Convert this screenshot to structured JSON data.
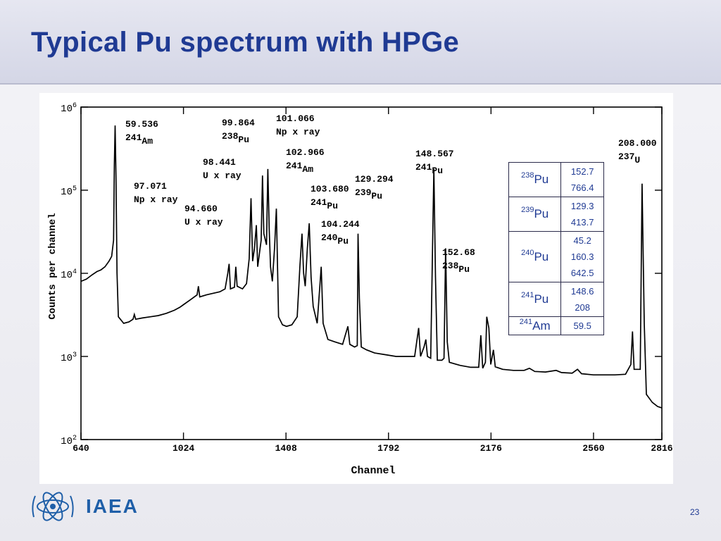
{
  "slide": {
    "title": "Typical Pu spectrum with HPGe",
    "page_number": "23",
    "org": "IAEA",
    "accent_color": "#1f3a93"
  },
  "chart_data": {
    "type": "line",
    "title": "",
    "xlabel": "Channel",
    "ylabel": "Counts per channel",
    "x_scale": "linear",
    "y_scale": "log",
    "xlim": [
      640,
      2816
    ],
    "ylim": [
      100,
      1000000
    ],
    "x_ticks": [
      {
        "value": 640,
        "label": "640"
      },
      {
        "value": 1024,
        "label": "1024"
      },
      {
        "value": 1408,
        "label": "1408"
      },
      {
        "value": 1792,
        "label": "1792"
      },
      {
        "value": 2176,
        "label": "2176"
      },
      {
        "value": 2560,
        "label": "2560"
      },
      {
        "value": 2816,
        "label": "2816"
      }
    ],
    "y_ticks": [
      {
        "value": 100,
        "base": "10",
        "exp": "2"
      },
      {
        "value": 1000,
        "base": "10",
        "exp": "3"
      },
      {
        "value": 10000,
        "base": "10",
        "exp": "4"
      },
      {
        "value": 100000,
        "base": "10",
        "exp": "5"
      },
      {
        "value": 1000000,
        "base": "10",
        "exp": "6"
      }
    ],
    "grid": false,
    "line_color": "#000000",
    "series": [
      {
        "points": [
          [
            640,
            8000
          ],
          [
            660,
            8500
          ],
          [
            680,
            9500
          ],
          [
            700,
            10500
          ],
          [
            715,
            11000
          ],
          [
            730,
            12000
          ],
          [
            745,
            14000
          ],
          [
            755,
            16000
          ],
          [
            762,
            25000
          ],
          [
            765,
            200000
          ],
          [
            768,
            600000
          ],
          [
            771,
            150000
          ],
          [
            775,
            10000
          ],
          [
            780,
            3000
          ],
          [
            800,
            2500
          ],
          [
            820,
            2600
          ],
          [
            835,
            2800
          ],
          [
            840,
            3200
          ],
          [
            845,
            2800
          ],
          [
            870,
            2900
          ],
          [
            900,
            3000
          ],
          [
            930,
            3100
          ],
          [
            960,
            3300
          ],
          [
            990,
            3600
          ],
          [
            1010,
            3900
          ],
          [
            1024,
            4200
          ],
          [
            1050,
            4800
          ],
          [
            1075,
            5500
          ],
          [
            1080,
            7000
          ],
          [
            1085,
            5200
          ],
          [
            1110,
            5500
          ],
          [
            1140,
            5800
          ],
          [
            1160,
            6000
          ],
          [
            1180,
            6500
          ],
          [
            1190,
            10000
          ],
          [
            1195,
            13000
          ],
          [
            1200,
            6500
          ],
          [
            1215,
            6800
          ],
          [
            1220,
            12000
          ],
          [
            1225,
            7000
          ],
          [
            1245,
            6500
          ],
          [
            1260,
            7500
          ],
          [
            1270,
            15000
          ],
          [
            1277,
            80000
          ],
          [
            1283,
            14000
          ],
          [
            1290,
            20000
          ],
          [
            1297,
            38000
          ],
          [
            1302,
            12000
          ],
          [
            1315,
            25000
          ],
          [
            1320,
            150000
          ],
          [
            1325,
            30000
          ],
          [
            1335,
            22000
          ],
          [
            1340,
            180000
          ],
          [
            1345,
            35000
          ],
          [
            1350,
            12000
          ],
          [
            1357,
            8000
          ],
          [
            1365,
            20000
          ],
          [
            1372,
            60000
          ],
          [
            1380,
            3000
          ],
          [
            1395,
            2400
          ],
          [
            1410,
            2300
          ],
          [
            1430,
            2400
          ],
          [
            1450,
            3000
          ],
          [
            1460,
            12000
          ],
          [
            1468,
            30000
          ],
          [
            1474,
            10000
          ],
          [
            1480,
            7000
          ],
          [
            1488,
            20000
          ],
          [
            1495,
            40000
          ],
          [
            1502,
            9000
          ],
          [
            1510,
            4000
          ],
          [
            1525,
            2500
          ],
          [
            1540,
            12000
          ],
          [
            1547,
            2500
          ],
          [
            1565,
            1600
          ],
          [
            1590,
            1500
          ],
          [
            1620,
            1400
          ],
          [
            1640,
            2300
          ],
          [
            1647,
            1400
          ],
          [
            1665,
            1300
          ],
          [
            1675,
            1350
          ],
          [
            1678,
            30000
          ],
          [
            1683,
            5000
          ],
          [
            1690,
            1300
          ],
          [
            1710,
            1200
          ],
          [
            1740,
            1100
          ],
          [
            1780,
            1050
          ],
          [
            1820,
            1000
          ],
          [
            1860,
            1000
          ],
          [
            1890,
            1000
          ],
          [
            1905,
            2200
          ],
          [
            1912,
            1000
          ],
          [
            1925,
            1300
          ],
          [
            1932,
            1600
          ],
          [
            1938,
            1000
          ],
          [
            1950,
            950
          ],
          [
            1962,
            180000
          ],
          [
            1968,
            9000
          ],
          [
            1975,
            900
          ],
          [
            1992,
            900
          ],
          [
            2000,
            950
          ],
          [
            2006,
            20000
          ],
          [
            2012,
            1500
          ],
          [
            2020,
            850
          ],
          [
            2060,
            780
          ],
          [
            2100,
            740
          ],
          [
            2130,
            740
          ],
          [
            2138,
            1800
          ],
          [
            2145,
            720
          ],
          [
            2155,
            850
          ],
          [
            2160,
            3000
          ],
          [
            2168,
            2200
          ],
          [
            2175,
            800
          ],
          [
            2185,
            1200
          ],
          [
            2192,
            750
          ],
          [
            2220,
            700
          ],
          [
            2260,
            680
          ],
          [
            2300,
            680
          ],
          [
            2320,
            720
          ],
          [
            2340,
            660
          ],
          [
            2380,
            650
          ],
          [
            2420,
            680
          ],
          [
            2440,
            640
          ],
          [
            2480,
            630
          ],
          [
            2500,
            700
          ],
          [
            2515,
            620
          ],
          [
            2560,
            600
          ],
          [
            2600,
            600
          ],
          [
            2640,
            600
          ],
          [
            2680,
            610
          ],
          [
            2700,
            800
          ],
          [
            2706,
            2000
          ],
          [
            2712,
            700
          ],
          [
            2735,
            700
          ],
          [
            2742,
            120000
          ],
          [
            2750,
            2500
          ],
          [
            2758,
            350
          ],
          [
            2780,
            280
          ],
          [
            2800,
            250
          ],
          [
            2816,
            240
          ]
        ]
      }
    ],
    "annotations": [
      {
        "energy": "59.536",
        "isotope": "Am",
        "mass": "241",
        "peak_x": 768,
        "peak_y": 600000
      },
      {
        "energy": "94.660",
        "note": "U x ray",
        "peak_x": 1277,
        "peak_y": 80000
      },
      {
        "energy": "97.071",
        "note": "Np x ray",
        "peak_x": 1290,
        "peak_y": 100000
      },
      {
        "energy": "98.441",
        "note": "U x ray",
        "peak_x": 1303,
        "peak_y": 130000
      },
      {
        "energy": "99.864",
        "isotope": "Pu",
        "mass": "238",
        "peak_x": 1320,
        "peak_y": 500000
      },
      {
        "energy": "101.066",
        "note": "Np x ray",
        "peak_x": 1336,
        "peak_y": 550000
      },
      {
        "energy": "102.966",
        "isotope": "Am",
        "mass": "241",
        "peak_x": 1340,
        "peak_y": 200000
      },
      {
        "energy": "103.680",
        "isotope": "Pu",
        "mass": "241",
        "peak_x": 1358,
        "peak_y": 30000
      },
      {
        "energy": "104.244",
        "isotope": "Pu",
        "mass": "240",
        "peak_x": 1365,
        "peak_y": 25000
      },
      {
        "energy": "129.294",
        "isotope": "Pu",
        "mass": "239",
        "peak_x": 1678,
        "peak_y": 30000
      },
      {
        "energy": "148.567",
        "isotope": "Pu",
        "mass": "241",
        "peak_x": 1962,
        "peak_y": 180000
      },
      {
        "energy": "152.68",
        "isotope": "Pu",
        "mass": "238",
        "peak_x": 2006,
        "peak_y": 20000
      },
      {
        "energy": "208.000",
        "isotope": "U",
        "mass": "237",
        "peak_x": 2742,
        "peak_y": 120000
      }
    ]
  },
  "isotope_table": [
    {
      "mass": "238",
      "element": "Pu",
      "energies": [
        "152.7",
        "766.4"
      ]
    },
    {
      "mass": "239",
      "element": "Pu",
      "energies": [
        "129.3",
        "413.7"
      ]
    },
    {
      "mass": "240",
      "element": "Pu",
      "energies": [
        "45.2",
        "160.3",
        "642.5"
      ]
    },
    {
      "mass": "241",
      "element": "Pu",
      "energies": [
        "148.6",
        "208"
      ]
    },
    {
      "mass": "241",
      "element": "Am",
      "energies": [
        "59.5"
      ]
    }
  ]
}
